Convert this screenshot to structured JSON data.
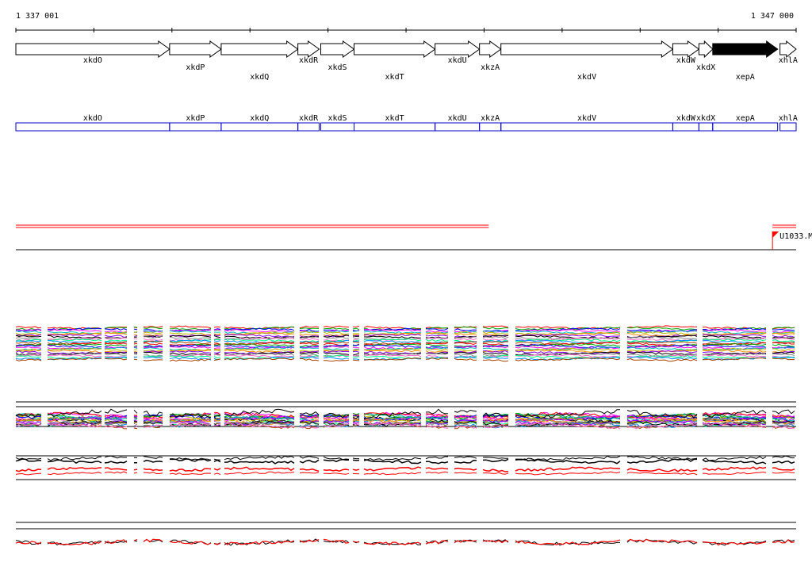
{
  "ruler": {
    "start_label": "1 337 001",
    "end_label": "1 347 000",
    "start": 1337001,
    "end": 1347000,
    "tick_step": 1000
  },
  "genes": [
    {
      "name": "xkdO",
      "start": 1337001,
      "end": 1338971,
      "strand": "+",
      "highlight": false
    },
    {
      "name": "xkdP",
      "start": 1338971,
      "end": 1339632,
      "strand": "+",
      "highlight": false
    },
    {
      "name": "xkdQ",
      "start": 1339632,
      "end": 1340615,
      "strand": "+",
      "highlight": false
    },
    {
      "name": "xkdR",
      "start": 1340615,
      "end": 1340888,
      "strand": "+",
      "highlight": false
    },
    {
      "name": "xkdS",
      "start": 1340908,
      "end": 1341335,
      "strand": "+",
      "highlight": false
    },
    {
      "name": "xkdT",
      "start": 1341335,
      "end": 1342373,
      "strand": "+",
      "highlight": false
    },
    {
      "name": "xkdU",
      "start": 1342373,
      "end": 1342942,
      "strand": "+",
      "highlight": false
    },
    {
      "name": "xkzA",
      "start": 1342942,
      "end": 1343217,
      "strand": "+",
      "highlight": false
    },
    {
      "name": "xkdV",
      "start": 1343217,
      "end": 1345419,
      "strand": "+",
      "highlight": false
    },
    {
      "name": "xkdW",
      "start": 1345419,
      "end": 1345754,
      "strand": "+",
      "highlight": false
    },
    {
      "name": "xkdX",
      "start": 1345754,
      "end": 1345931,
      "strand": "+",
      "highlight": false
    },
    {
      "name": "xepA",
      "start": 1345931,
      "end": 1346763,
      "strand": "+",
      "highlight": true
    },
    {
      "name": "xhlA",
      "start": 1346793,
      "end": 1347000,
      "strand": "+",
      "highlight": false
    }
  ],
  "gene_label_rows": {
    "xkdO": 1,
    "xkdP": 2,
    "xkdQ": 3,
    "xkdR": 1,
    "xkdS": 2,
    "xkdT": 3,
    "xkdU": 1,
    "xkzA": 2,
    "xkdV": 3,
    "xkdW": 1,
    "xkdX": 2,
    "xepA": 3,
    "xhlA": 1
  },
  "transcript_track": {
    "lines": [
      {
        "start": 1337001,
        "end": 1343061,
        "color": "#ff0000"
      },
      {
        "start": 1346697,
        "end": 1347000,
        "color": "#ff0000"
      }
    ],
    "baseline_color": "#000000",
    "tss_label": "U1033.M",
    "tss_position": 1346697,
    "tss_color": "#ff0000"
  },
  "colors": {
    "gene_fill": "#ffffff",
    "gene_highlight": "#000000",
    "feature_box": "#0000cc",
    "panel_palette": [
      "#ff0000",
      "#00aa00",
      "#0000ff",
      "#ff00ff",
      "#00bbbb",
      "#bbbb00",
      "#ff8800",
      "#8800ff",
      "#000000",
      "#888888",
      "#ff66cc",
      "#00ff88",
      "#0088ff",
      "#aa4400"
    ]
  }
}
